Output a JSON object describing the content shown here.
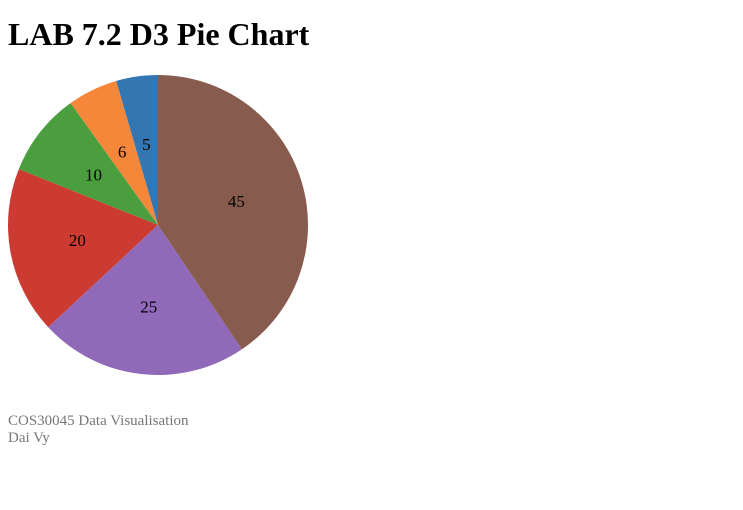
{
  "page": {
    "title": "LAB 7.2 D3 Pie Chart"
  },
  "chart_data": {
    "type": "pie",
    "values": [
      5,
      6,
      10,
      20,
      25,
      45
    ],
    "labels": [
      "5",
      "6",
      "10",
      "20",
      "25",
      "45"
    ],
    "colors": [
      "#3377b2",
      "#f5873a",
      "#4a9e3e",
      "#cc3b32",
      "#9069b8",
      "#875b4e"
    ],
    "direction": "counterclockwise from top"
  },
  "footer": {
    "course": "COS30045 Data Visualisation",
    "author": "Dai Vy"
  }
}
